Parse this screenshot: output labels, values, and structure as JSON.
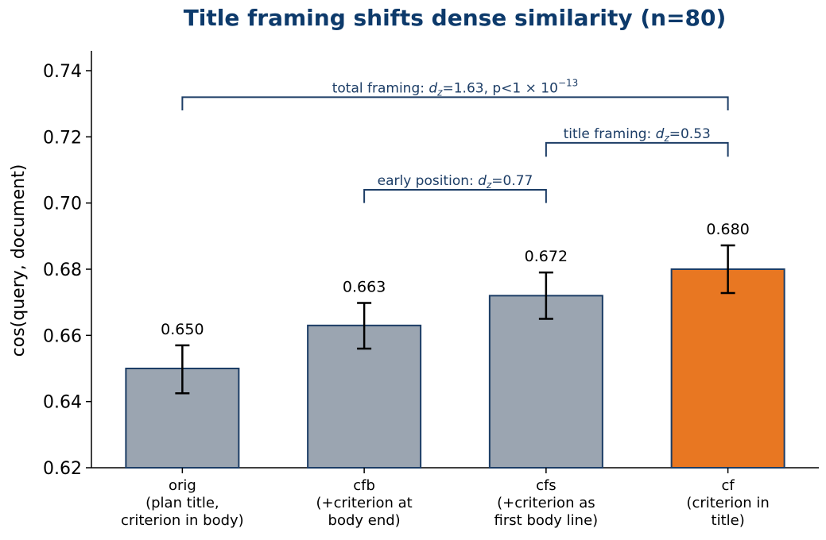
{
  "colors": {
    "title": "#0d3a6b",
    "bar_default": "#9ba5b1",
    "bar_highlight": "#e87722",
    "bar_edge": "#1c3d66",
    "bracket": "#1c3d66",
    "error": "#000000"
  },
  "chart_data": {
    "type": "bar",
    "title": "Title framing shifts dense similarity (n=80)",
    "ylabel": "cos(query, document)",
    "xlabel": "",
    "ylim": [
      0.62,
      0.746
    ],
    "yticks": [
      0.62,
      0.64,
      0.66,
      0.68,
      0.7,
      0.72,
      0.74
    ],
    "ytick_labels": [
      "0.62",
      "0.64",
      "0.66",
      "0.68",
      "0.70",
      "0.72",
      "0.74"
    ],
    "grid": false,
    "categories": [
      [
        "orig",
        "(plan title,",
        "criterion in body)"
      ],
      [
        "cfb",
        "(+criterion at",
        "body end)"
      ],
      [
        "cfs",
        "(+criterion as",
        "first body line)"
      ],
      [
        "cf",
        "(criterion in",
        "title)"
      ]
    ],
    "values": [
      0.65,
      0.663,
      0.672,
      0.68
    ],
    "value_labels": [
      "0.650",
      "0.663",
      "0.672",
      "0.680"
    ],
    "error_low": [
      0.6425,
      0.656,
      0.665,
      0.6728
    ],
    "error_high": [
      0.657,
      0.6698,
      0.679,
      0.6872
    ],
    "highlight_index": 3,
    "brackets": [
      {
        "from": 1,
        "to": 2,
        "y": 0.704,
        "tick_bottom": 0.7,
        "label_prefix": "early position: ",
        "d_sym": "d",
        "d_sub": "z",
        "label_suffix": "=0.77",
        "exp": ""
      },
      {
        "from": 2,
        "to": 3,
        "y": 0.7182,
        "tick_bottom": 0.714,
        "label_prefix": "title framing: ",
        "d_sym": "d",
        "d_sub": "z",
        "label_suffix": "=0.53",
        "exp": ""
      },
      {
        "from": 0,
        "to": 3,
        "y": 0.732,
        "tick_bottom": 0.728,
        "label_prefix": "total framing: ",
        "d_sym": "d",
        "d_sub": "z",
        "label_suffix": "=1.63, p<1 × 10",
        "exp": "−13"
      }
    ]
  }
}
